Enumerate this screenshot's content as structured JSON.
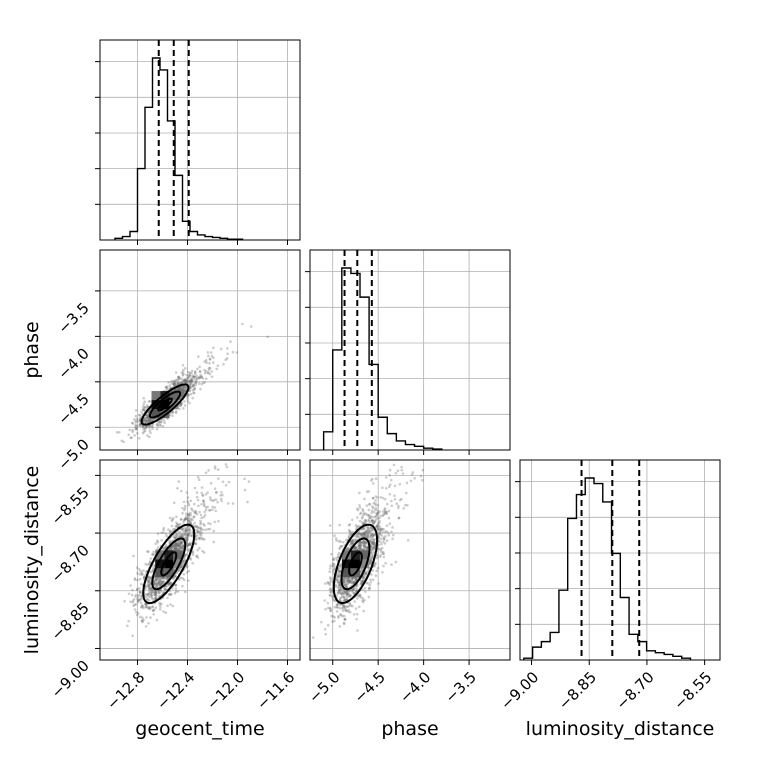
{
  "chart_data": {
    "type": "corner",
    "parameters": [
      "geocent_time",
      "phase",
      "luminosity_distance"
    ],
    "axis_labels": {
      "geocent_time": "geocent_time",
      "phase": "phase",
      "luminosity_distance": "luminosity_distance"
    },
    "ranges": {
      "geocent_time": [
        -13.1,
        -11.5
      ],
      "phase": [
        -5.25,
        -3.05
      ],
      "luminosity_distance": [
        -9.03,
        -8.51
      ]
    },
    "ticks": {
      "geocent_time": [
        -12.8,
        -12.4,
        -12.0,
        -11.6
      ],
      "phase": [
        -5.0,
        -4.5,
        -4.0,
        -3.5
      ],
      "luminosity_distance": [
        -9.0,
        -8.85,
        -8.7,
        -8.55
      ]
    },
    "tick_labels": {
      "geocent_time": [
        "−12.8",
        "−12.4",
        "−12.0",
        "−11.6"
      ],
      "phase": [
        "−5.0",
        "−4.5",
        "−4.0",
        "−3.5"
      ],
      "luminosity_distance": [
        "−9.00",
        "−8.85",
        "−8.70",
        "−8.55"
      ]
    },
    "quantiles": {
      "geocent_time": [
        -12.63,
        -12.51,
        -12.39
      ],
      "phase": [
        -4.87,
        -4.73,
        -4.57
      ],
      "luminosity_distance": [
        -8.87,
        -8.79,
        -8.72
      ]
    },
    "histograms": {
      "geocent_time": {
        "x_start": -12.98,
        "bin_width": 0.06,
        "counts": [
          1,
          2,
          5,
          42,
          78,
          107,
          100,
          70,
          38,
          11,
          5,
          3,
          2,
          1.5,
          1,
          0.5,
          0.5
        ]
      },
      "phase": {
        "x_start": -5.1,
        "bin_width": 0.1,
        "counts": [
          10,
          55,
          100,
          97,
          84,
          47,
          18,
          9,
          5,
          3,
          2,
          1,
          0.5
        ]
      },
      "luminosity_distance": {
        "x_start": -9.02,
        "bin_width": 0.0228,
        "counts": [
          1,
          7,
          10,
          15,
          38,
          77,
          90,
          99,
          96,
          86,
          58,
          34,
          14,
          10,
          5,
          4,
          3,
          2,
          1
        ]
      }
    },
    "scatter": [
      {
        "x": "geocent_time",
        "y": "phase",
        "center": [
          -12.58,
          -4.75
        ],
        "sigma": [
          0.11,
          0.13
        ],
        "rho": 0.85,
        "n": 1400
      },
      {
        "x": "geocent_time",
        "y": "luminosity_distance",
        "center": [
          -12.55,
          -8.78
        ],
        "sigma": [
          0.12,
          0.06
        ],
        "rho": 0.75,
        "n": 1400
      },
      {
        "x": "phase",
        "y": "luminosity_distance",
        "center": [
          -4.75,
          -8.78
        ],
        "sigma": [
          0.14,
          0.06
        ],
        "rho": 0.6,
        "n": 1400
      }
    ]
  }
}
